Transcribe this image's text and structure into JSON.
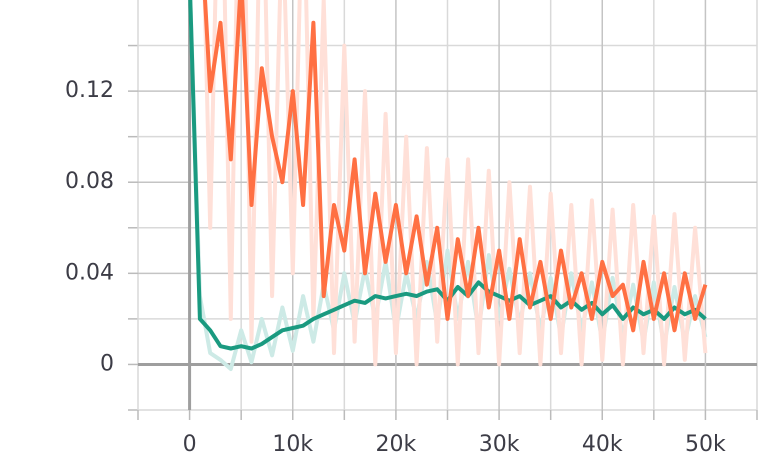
{
  "chart_data": {
    "type": "line",
    "x": [
      0,
      1000,
      2000,
      3000,
      4000,
      5000,
      6000,
      7000,
      8000,
      9000,
      10000,
      11000,
      12000,
      13000,
      14000,
      15000,
      16000,
      17000,
      18000,
      19000,
      20000,
      21000,
      22000,
      23000,
      24000,
      25000,
      26000,
      27000,
      28000,
      29000,
      30000,
      31000,
      32000,
      33000,
      34000,
      35000,
      36000,
      37000,
      38000,
      39000,
      40000,
      41000,
      42000,
      43000,
      44000,
      45000,
      46000,
      47000,
      48000,
      49000,
      50000
    ],
    "series": [
      {
        "color": "#cdeae6",
        "values": [
          0.17,
          0.03,
          0.005,
          0.002,
          -0.002,
          0.015,
          0.001,
          0.02,
          0.004,
          0.025,
          0.006,
          0.03,
          0.01,
          0.035,
          0.015,
          0.04,
          0.018,
          0.042,
          0.02,
          0.045,
          0.015,
          0.04,
          0.02,
          0.045,
          0.018,
          0.05,
          0.02,
          0.045,
          0.015,
          0.048,
          0.02,
          0.042,
          0.018,
          0.04,
          0.015,
          0.038,
          0.012,
          0.04,
          0.015,
          0.036,
          0.01,
          0.038,
          0.012,
          0.035,
          0.01,
          0.036,
          0.008,
          0.034,
          0.01,
          0.03,
          0.012
        ]
      },
      {
        "color": "#ffe0d8",
        "values": [
          null,
          0.25,
          0.06,
          0.26,
          0.02,
          0.28,
          0.01,
          0.24,
          0.03,
          0.2,
          0.04,
          0.22,
          0.02,
          0.16,
          0.005,
          0.14,
          0.01,
          0.12,
          0.0,
          0.11,
          0.005,
          0.1,
          0.0,
          0.095,
          0.01,
          0.09,
          0.0,
          0.09,
          0.005,
          0.085,
          0.0,
          0.08,
          0.005,
          0.078,
          0.0,
          0.075,
          0.005,
          0.07,
          0.0,
          0.072,
          0.002,
          0.068,
          0.0,
          0.07,
          0.005,
          0.065,
          0.0,
          0.066,
          0.002,
          0.06,
          0.005
        ]
      },
      {
        "color": "#1a9a80",
        "values": [
          0.17,
          0.02,
          0.015,
          0.008,
          0.007,
          0.008,
          0.007,
          0.009,
          0.012,
          0.015,
          0.016,
          0.017,
          0.02,
          0.022,
          0.024,
          0.026,
          0.028,
          0.027,
          0.03,
          0.029,
          0.03,
          0.031,
          0.03,
          0.032,
          0.033,
          0.028,
          0.034,
          0.03,
          0.036,
          0.032,
          0.03,
          0.028,
          0.03,
          0.026,
          0.028,
          0.03,
          0.025,
          0.028,
          0.024,
          0.027,
          0.022,
          0.026,
          0.02,
          0.025,
          0.022,
          0.024,
          0.02,
          0.025,
          0.022,
          0.024,
          0.02
        ]
      },
      {
        "color": "#ff7043",
        "values": [
          null,
          0.2,
          0.12,
          0.15,
          0.09,
          0.17,
          0.07,
          0.13,
          0.1,
          0.08,
          0.12,
          0.07,
          0.15,
          0.03,
          0.07,
          0.05,
          0.09,
          0.04,
          0.075,
          0.045,
          0.07,
          0.04,
          0.065,
          0.035,
          0.06,
          0.02,
          0.055,
          0.03,
          0.06,
          0.025,
          0.05,
          0.02,
          0.055,
          0.025,
          0.045,
          0.02,
          0.05,
          0.025,
          0.04,
          0.02,
          0.045,
          0.03,
          0.035,
          0.015,
          0.045,
          0.02,
          0.04,
          0.015,
          0.04,
          0.02,
          0.035
        ]
      }
    ],
    "xlim": [
      -5000,
      55000
    ],
    "ylim": [
      -0.02,
      0.16
    ],
    "xticks": [
      0,
      {
        "value": 10000,
        "label": "10k"
      },
      {
        "value": 20000,
        "label": "20k"
      },
      {
        "value": 30000,
        "label": "30k"
      },
      {
        "value": 40000,
        "label": "40k"
      },
      {
        "value": 50000,
        "label": "50k"
      }
    ],
    "yticks": [
      0,
      0.04,
      0.08,
      0.12
    ],
    "minor_xticks": [
      -5000,
      5000,
      15000,
      25000,
      35000,
      45000,
      55000
    ],
    "minor_yticks": [
      -0.02,
      0.02,
      0.06,
      0.1,
      0.14
    ],
    "grid": true
  }
}
